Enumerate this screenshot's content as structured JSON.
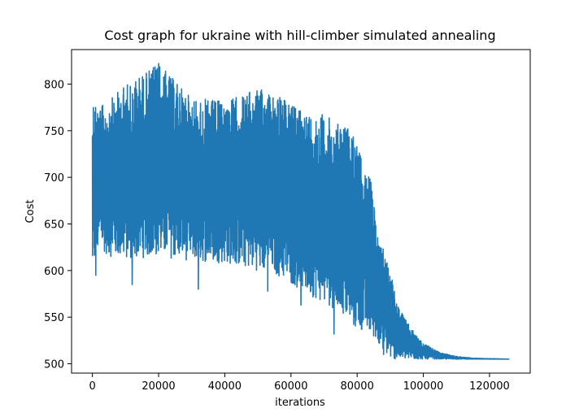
{
  "chart_data": {
    "type": "line",
    "title": "Cost graph for ukraine with hill-climber simulated annealing",
    "xlabel": "iterations",
    "ylabel": "Cost",
    "xlim": [
      -6300,
      132300
    ],
    "ylim": [
      490,
      837
    ],
    "xticks": [
      0,
      20000,
      40000,
      60000,
      80000,
      100000,
      120000
    ],
    "xtick_labels": [
      "0",
      "20000",
      "40000",
      "60000",
      "80000",
      "100000",
      "120000"
    ],
    "yticks": [
      500,
      550,
      600,
      650,
      700,
      750,
      800
    ],
    "ytick_labels": [
      "500",
      "550",
      "600",
      "650",
      "700",
      "750",
      "800"
    ],
    "grid": false,
    "series_color": "#1f77b4",
    "envelope": {
      "x": [
        0,
        2000,
        5000,
        10000,
        20000,
        30000,
        40000,
        50000,
        55000,
        60000,
        65000,
        70000,
        75000,
        78000,
        80000,
        82000,
        84000,
        86000,
        88000,
        90000,
        92000,
        95000,
        98000,
        100000,
        105000,
        110000,
        115000,
        126000
      ],
      "upper": [
        788,
        775,
        782,
        800,
        822,
        785,
        782,
        795,
        790,
        778,
        770,
        768,
        755,
        752,
        735,
        710,
        700,
        645,
        625,
        600,
        565,
        545,
        530,
        522,
        512,
        508,
        506,
        505
      ],
      "lower": [
        595,
        625,
        615,
        612,
        615,
        610,
        608,
        600,
        596,
        585,
        575,
        565,
        555,
        540,
        535,
        535,
        530,
        525,
        515,
        505,
        505,
        505,
        505,
        505,
        505,
        505,
        505,
        505
      ]
    },
    "spikes": [
      {
        "x": 20000,
        "y": 822
      },
      {
        "x": 1000,
        "y": 595
      },
      {
        "x": 12000,
        "y": 585
      },
      {
        "x": 32000,
        "y": 580
      },
      {
        "x": 53000,
        "y": 578
      },
      {
        "x": 63000,
        "y": 563
      },
      {
        "x": 73000,
        "y": 532
      },
      {
        "x": 88000,
        "y": 510
      }
    ],
    "final_value": 505,
    "final_iteration": 126000
  }
}
